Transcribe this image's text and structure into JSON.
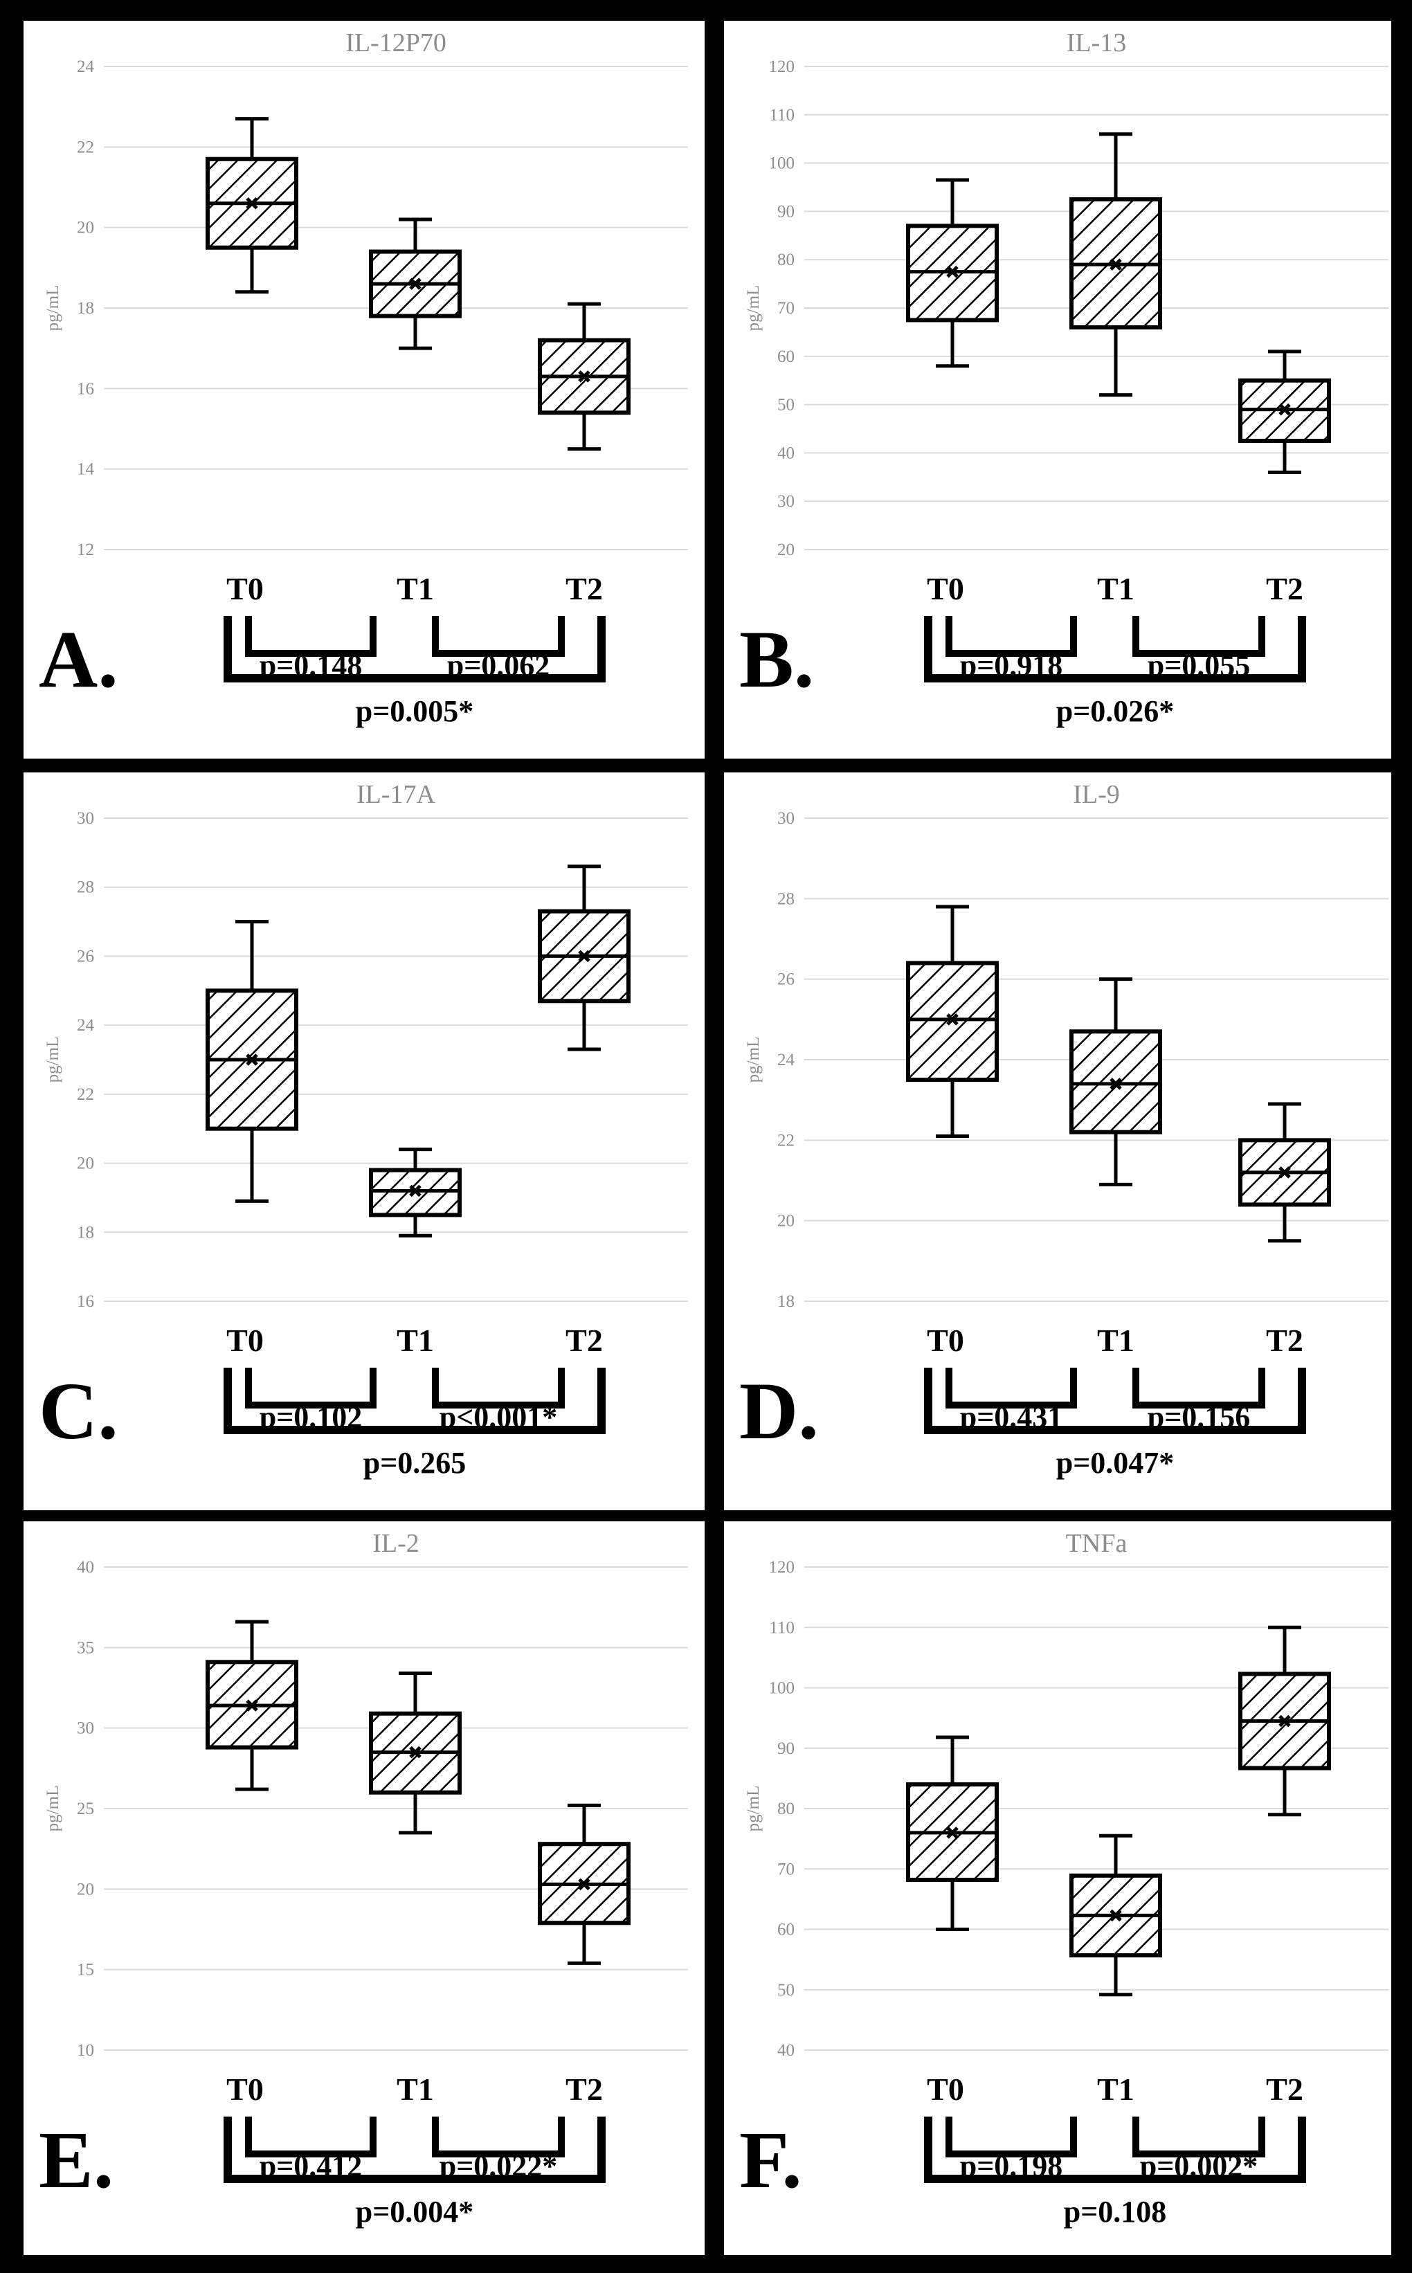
{
  "chart_data": [
    {
      "type": "box",
      "panel_label": "A.",
      "title": "IL-12P70",
      "ylabel": "pg/mL",
      "ylim": [
        12,
        24
      ],
      "yticks": [
        12,
        14,
        16,
        18,
        20,
        22,
        24
      ],
      "grid": true,
      "categories": [
        "T0",
        "T1",
        "T2"
      ],
      "boxes": [
        {
          "min": 18.4,
          "q1": 19.5,
          "median": 20.6,
          "mean": 20.6,
          "q3": 21.7,
          "max": 22.7
        },
        {
          "min": 17.0,
          "q1": 17.8,
          "median": 18.6,
          "mean": 18.6,
          "q3": 19.4,
          "max": 20.2
        },
        {
          "min": 14.5,
          "q1": 15.4,
          "median": 16.3,
          "mean": 16.3,
          "q3": 17.2,
          "max": 18.1
        }
      ],
      "comparisons": [
        {
          "from": "T0",
          "to": "T1",
          "label": "p=0.148"
        },
        {
          "from": "T1",
          "to": "T2",
          "label": "p=0.062"
        },
        {
          "from": "T0",
          "to": "T2",
          "label": "p=0.005*"
        }
      ]
    },
    {
      "type": "box",
      "panel_label": "B.",
      "title": "IL-13",
      "ylabel": "pg/mL",
      "ylim": [
        20,
        120
      ],
      "yticks": [
        20,
        30,
        40,
        50,
        60,
        70,
        80,
        90,
        100,
        110,
        120
      ],
      "grid": true,
      "categories": [
        "T0",
        "T1",
        "T2"
      ],
      "boxes": [
        {
          "min": 58,
          "q1": 67.5,
          "median": 77.5,
          "mean": 77.5,
          "q3": 87,
          "max": 96.5
        },
        {
          "min": 52,
          "q1": 66,
          "median": 79,
          "mean": 79,
          "q3": 92.5,
          "max": 106
        },
        {
          "min": 36,
          "q1": 42.5,
          "median": 49,
          "mean": 49,
          "q3": 55,
          "max": 61
        }
      ],
      "comparisons": [
        {
          "from": "T0",
          "to": "T1",
          "label": "p=0.918"
        },
        {
          "from": "T1",
          "to": "T2",
          "label": "p=0.055"
        },
        {
          "from": "T0",
          "to": "T2",
          "label": "p=0.026*"
        }
      ]
    },
    {
      "type": "box",
      "panel_label": "C.",
      "title": "IL-17A",
      "ylabel": "pg/mL",
      "ylim": [
        16,
        30
      ],
      "yticks": [
        16,
        18,
        20,
        22,
        24,
        26,
        28,
        30
      ],
      "grid": true,
      "categories": [
        "T0",
        "T1",
        "T2"
      ],
      "boxes": [
        {
          "min": 18.9,
          "q1": 21.0,
          "median": 23.0,
          "mean": 23.0,
          "q3": 25.0,
          "max": 27.0
        },
        {
          "min": 17.9,
          "q1": 18.5,
          "median": 19.2,
          "mean": 19.2,
          "q3": 19.8,
          "max": 20.4
        },
        {
          "min": 23.3,
          "q1": 24.7,
          "median": 26.0,
          "mean": 26.0,
          "q3": 27.3,
          "max": 28.6
        }
      ],
      "comparisons": [
        {
          "from": "T0",
          "to": "T1",
          "label": "p=0.102"
        },
        {
          "from": "T1",
          "to": "T2",
          "label": "p<0.001*"
        },
        {
          "from": "T0",
          "to": "T2",
          "label": "p=0.265"
        }
      ]
    },
    {
      "type": "box",
      "panel_label": "D.",
      "title": "IL-9",
      "ylabel": "pg/mL",
      "ylim": [
        18,
        30
      ],
      "yticks": [
        18,
        20,
        22,
        24,
        26,
        28,
        30
      ],
      "grid": true,
      "categories": [
        "T0",
        "T1",
        "T2"
      ],
      "boxes": [
        {
          "min": 22.1,
          "q1": 23.5,
          "median": 25.0,
          "mean": 25.0,
          "q3": 26.4,
          "max": 27.8
        },
        {
          "min": 20.9,
          "q1": 22.2,
          "median": 23.4,
          "mean": 23.4,
          "q3": 24.7,
          "max": 26.0
        },
        {
          "min": 19.5,
          "q1": 20.4,
          "median": 21.2,
          "mean": 21.2,
          "q3": 22.0,
          "max": 22.9
        }
      ],
      "comparisons": [
        {
          "from": "T0",
          "to": "T1",
          "label": "p=0.431"
        },
        {
          "from": "T1",
          "to": "T2",
          "label": "p=0.156"
        },
        {
          "from": "T0",
          "to": "T2",
          "label": "p=0.047*"
        }
      ]
    },
    {
      "type": "box",
      "panel_label": "E.",
      "title": "IL-2",
      "ylabel": "pg/mL",
      "ylim": [
        10,
        40
      ],
      "yticks": [
        10,
        15,
        20,
        25,
        30,
        35,
        40
      ],
      "grid": true,
      "categories": [
        "T0",
        "T1",
        "T2"
      ],
      "boxes": [
        {
          "min": 26.2,
          "q1": 28.8,
          "median": 31.4,
          "mean": 31.4,
          "q3": 34.1,
          "max": 36.6
        },
        {
          "min": 23.5,
          "q1": 26.0,
          "median": 28.5,
          "mean": 28.5,
          "q3": 30.9,
          "max": 33.4
        },
        {
          "min": 15.4,
          "q1": 17.9,
          "median": 20.3,
          "mean": 20.3,
          "q3": 22.8,
          "max": 25.2
        }
      ],
      "comparisons": [
        {
          "from": "T0",
          "to": "T1",
          "label": "p=0.412"
        },
        {
          "from": "T1",
          "to": "T2",
          "label": "p=0.022*"
        },
        {
          "from": "T0",
          "to": "T2",
          "label": "p=0.004*"
        }
      ]
    },
    {
      "type": "box",
      "panel_label": "F.",
      "title": "TNFa",
      "ylabel": "pg/mL",
      "ylim": [
        40,
        120
      ],
      "yticks": [
        40,
        50,
        60,
        70,
        80,
        90,
        100,
        110,
        120
      ],
      "grid": true,
      "categories": [
        "T0",
        "T1",
        "T2"
      ],
      "boxes": [
        {
          "min": 60,
          "q1": 68.2,
          "median": 76,
          "mean": 76,
          "q3": 84,
          "max": 91.8
        },
        {
          "min": 49.2,
          "q1": 55.7,
          "median": 62.3,
          "mean": 62.3,
          "q3": 68.9,
          "max": 75.5
        },
        {
          "min": 79,
          "q1": 86.7,
          "median": 94.5,
          "mean": 94.5,
          "q3": 102.3,
          "max": 110
        }
      ],
      "comparisons": [
        {
          "from": "T0",
          "to": "T1",
          "label": "p=0.198"
        },
        {
          "from": "T1",
          "to": "T2",
          "label": "p=0.002*"
        },
        {
          "from": "T0",
          "to": "T2",
          "label": "p=0.108"
        }
      ]
    }
  ]
}
